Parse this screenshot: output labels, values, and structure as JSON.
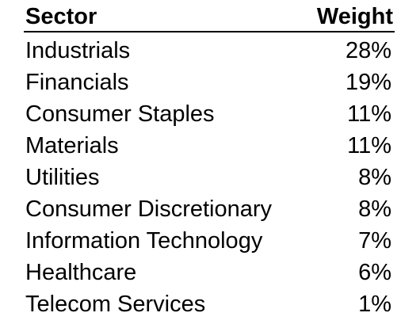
{
  "table": {
    "headers": {
      "sector": "Sector",
      "weight": "Weight"
    },
    "rows": [
      {
        "sector": "Industrials",
        "weight": "28%"
      },
      {
        "sector": "Financials",
        "weight": "19%"
      },
      {
        "sector": "Consumer Staples",
        "weight": "11%"
      },
      {
        "sector": "Materials",
        "weight": "11%"
      },
      {
        "sector": "Utilities",
        "weight": "8%"
      },
      {
        "sector": "Consumer Discretionary",
        "weight": "8%"
      },
      {
        "sector": "Information Technology",
        "weight": "7%"
      },
      {
        "sector": "Healthcare",
        "weight": "6%"
      },
      {
        "sector": "Telecom Services",
        "weight": "1%"
      }
    ]
  }
}
